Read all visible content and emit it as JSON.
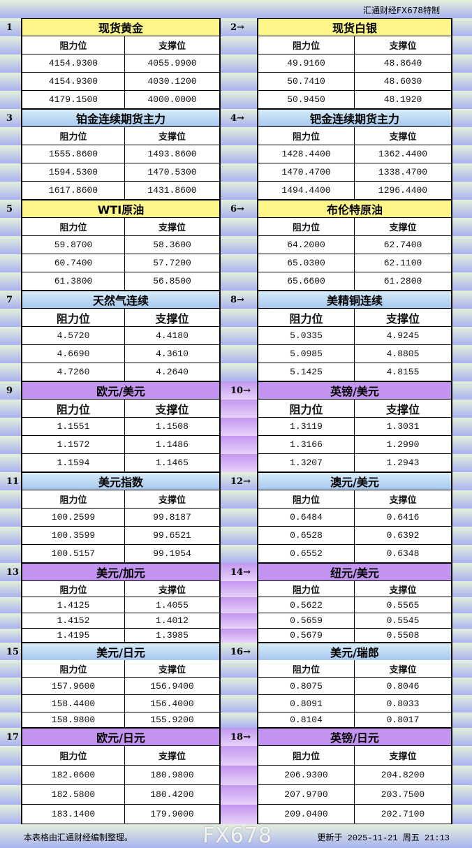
{
  "brand": "汇通财经FX678特制",
  "headers": {
    "resistance": "阻力位",
    "support": "支撑位"
  },
  "sections": [
    {
      "theme": "yellow",
      "left": {
        "num": "1",
        "title": "现货黄金",
        "rows": [
          [
            "4154.9300",
            "4055.9900"
          ],
          [
            "4154.9300",
            "4030.1200"
          ],
          [
            "4179.1500",
            "4000.0000"
          ]
        ]
      },
      "right": {
        "num": "2→",
        "title": "现货白银",
        "rows": [
          [
            "49.9160",
            "48.8640"
          ],
          [
            "50.7410",
            "48.6030"
          ],
          [
            "50.9450",
            "48.1920"
          ]
        ]
      }
    },
    {
      "theme": "blue",
      "left": {
        "num": "3",
        "title": "铂金连续期货主力",
        "rows": [
          [
            "1555.8600",
            "1493.8600"
          ],
          [
            "1594.5300",
            "1470.5300"
          ],
          [
            "1617.8600",
            "1431.8600"
          ]
        ]
      },
      "right": {
        "num": "4→",
        "title": "钯金连续期货主力",
        "rows": [
          [
            "1428.4400",
            "1362.4400"
          ],
          [
            "1470.4700",
            "1338.4700"
          ],
          [
            "1494.4400",
            "1296.4400"
          ]
        ]
      }
    },
    {
      "theme": "yellow",
      "left": {
        "num": "5",
        "title": "WTI原油",
        "rows": [
          [
            "59.8700",
            "58.3600"
          ],
          [
            "60.7400",
            "57.7200"
          ],
          [
            "61.3800",
            "56.8500"
          ]
        ]
      },
      "right": {
        "num": "6→",
        "title": "布伦特原油",
        "rows": [
          [
            "64.2000",
            "62.7400"
          ],
          [
            "65.0300",
            "62.1100"
          ],
          [
            "65.6600",
            "61.2800"
          ]
        ]
      }
    },
    {
      "theme": "blue",
      "left": {
        "num": "7",
        "title": "天然气连续",
        "rows": [
          [
            "4.5720",
            "4.4180"
          ],
          [
            "4.6690",
            "4.3610"
          ],
          [
            "4.7260",
            "4.2640"
          ]
        ]
      },
      "right": {
        "num": "8→",
        "title": "美精铜连续",
        "rows": [
          [
            "5.0335",
            "4.9245"
          ],
          [
            "5.0985",
            "4.8805"
          ],
          [
            "5.1425",
            "4.8155"
          ]
        ]
      }
    },
    {
      "theme": "purple",
      "left": {
        "num": "9",
        "title": "欧元/美元",
        "rows": [
          [
            "1.1551",
            "1.1508"
          ],
          [
            "1.1572",
            "1.1486"
          ],
          [
            "1.1594",
            "1.1465"
          ]
        ]
      },
      "right": {
        "num": "10→",
        "title": "英镑/美元",
        "rows": [
          [
            "1.3119",
            "1.3031"
          ],
          [
            "1.3166",
            "1.2990"
          ],
          [
            "1.3207",
            "1.2943"
          ]
        ]
      }
    },
    {
      "theme": "blue",
      "left": {
        "num": "11",
        "title": "美元指数",
        "rows": [
          [
            "100.2599",
            "99.8187"
          ],
          [
            "100.3599",
            "99.6521"
          ],
          [
            "100.5157",
            "99.1954"
          ]
        ]
      },
      "right": {
        "num": "12→",
        "title": "澳元/美元",
        "rows": [
          [
            "0.6484",
            "0.6416"
          ],
          [
            "0.6528",
            "0.6392"
          ],
          [
            "0.6552",
            "0.6348"
          ]
        ]
      }
    },
    {
      "theme": "purple",
      "left": {
        "num": "13",
        "title": "美元/加元",
        "rows": [
          [
            "1.4125",
            "1.4055"
          ],
          [
            "1.4152",
            "1.4012"
          ],
          [
            "1.4195",
            "1.3985"
          ]
        ]
      },
      "right": {
        "num": "14→",
        "title": "纽元/美元",
        "rows": [
          [
            "0.5622",
            "0.5565"
          ],
          [
            "0.5659",
            "0.5545"
          ],
          [
            "0.5679",
            "0.5508"
          ]
        ]
      }
    },
    {
      "theme": "blue",
      "left": {
        "num": "15",
        "title": "美元/日元",
        "rows": [
          [
            "157.9600",
            "156.9400"
          ],
          [
            "158.4400",
            "156.4000"
          ],
          [
            "158.9800",
            "155.9200"
          ]
        ]
      },
      "right": {
        "num": "16→",
        "title": "美元/瑞郎",
        "rows": [
          [
            "0.8075",
            "0.8046"
          ],
          [
            "0.8091",
            "0.8033"
          ],
          [
            "0.8104",
            "0.8017"
          ]
        ]
      }
    },
    {
      "theme": "purple",
      "left": {
        "num": "17",
        "title": "欧元/日元",
        "rows": [
          [
            "182.0600",
            "180.9800"
          ],
          [
            "182.5800",
            "180.4200"
          ],
          [
            "183.1400",
            "179.9000"
          ]
        ]
      },
      "right": {
        "num": "18→",
        "title": "英镑/日元",
        "rows": [
          [
            "206.9300",
            "204.8200"
          ],
          [
            "207.9700",
            "203.7500"
          ],
          [
            "209.0400",
            "202.7100"
          ]
        ]
      }
    }
  ],
  "footer": {
    "note": "本表格由汇通财经编制整理。",
    "updated": "更新于 2025-11-21 周五 21:13"
  },
  "watermark": "FX678"
}
